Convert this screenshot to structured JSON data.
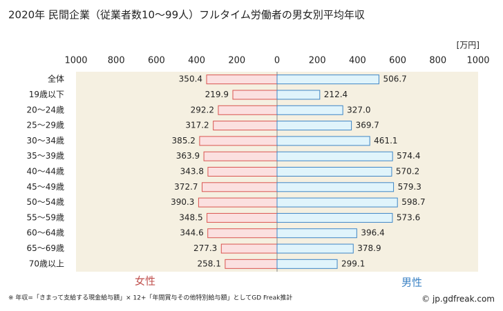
{
  "chart_data": {
    "type": "bar",
    "title": "2020年 民間企業（従業者数10〜99人）フルタイム労働者の男女別平均年収",
    "unit": "[万円]",
    "categories": [
      "全体",
      "19歳以下",
      "20〜24歳",
      "25〜29歳",
      "30〜34歳",
      "35〜39歳",
      "40〜44歳",
      "45〜49歳",
      "50〜54歳",
      "55〜59歳",
      "60〜64歳",
      "65〜69歳",
      "70歳以上"
    ],
    "xlim": [
      0,
      1000
    ],
    "xticks": [
      0,
      200,
      400,
      600,
      800,
      1000
    ],
    "series": [
      {
        "name": "女性",
        "side": "left",
        "color": "#fbe0e0",
        "edge": "#d9534f",
        "label_color": "#c0504d",
        "values": [
          350.4,
          219.9,
          292.2,
          317.2,
          385.2,
          363.9,
          343.8,
          372.7,
          390.3,
          348.5,
          344.6,
          277.3,
          258.1
        ]
      },
      {
        "name": "男性",
        "side": "right",
        "color": "#e0f4fb",
        "edge": "#3d85c6",
        "label_color": "#3b82c4",
        "values": [
          506.7,
          212.4,
          327.0,
          369.7,
          461.1,
          574.4,
          570.2,
          579.3,
          598.7,
          573.6,
          396.4,
          378.9,
          299.1
        ],
        "value_labels": [
          "506.7",
          "212.4",
          "327.0",
          "369.7",
          "461.1",
          "574.4",
          "570.2",
          "579.3",
          "598.7",
          "573.6",
          "396.4",
          "378.9",
          "299.1"
        ]
      }
    ],
    "footnote": "※ 年収=「きまって支給する現金給与額」× 12+「年間賞与その他特別給与額」としてGD Freak推計",
    "source": "© jp.gdfreak.com"
  }
}
